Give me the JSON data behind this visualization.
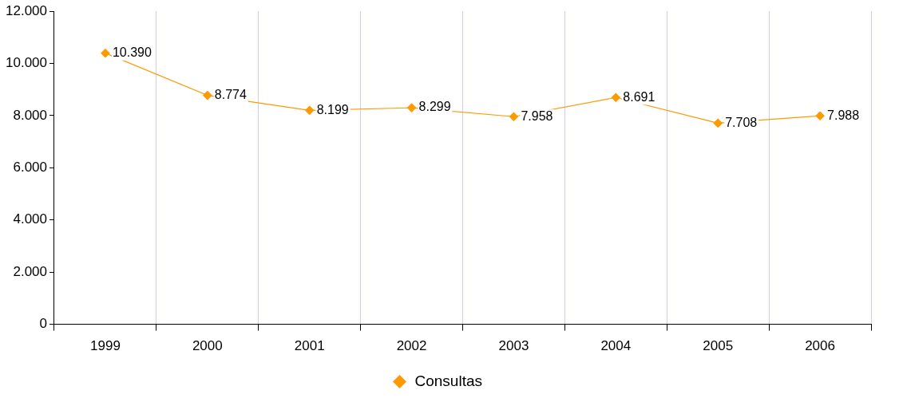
{
  "chart_data": {
    "type": "line",
    "categories": [
      "1999",
      "2000",
      "2001",
      "2002",
      "2003",
      "2004",
      "2005",
      "2006"
    ],
    "series": [
      {
        "name": "Consultas",
        "color": "#ff9900",
        "values": [
          10390,
          8774,
          8199,
          8299,
          7958,
          8691,
          7708,
          7988
        ],
        "value_labels": [
          "10.390",
          "8.774",
          "8.199",
          "8.299",
          "7.958",
          "8.691",
          "7.708",
          "7.988"
        ]
      }
    ],
    "ylim": [
      0,
      12000
    ],
    "yticks": [
      {
        "value": 0,
        "label": "0"
      },
      {
        "value": 2000,
        "label": "2.000"
      },
      {
        "value": 4000,
        "label": "4.000"
      },
      {
        "value": 6000,
        "label": "6.000"
      },
      {
        "value": 8000,
        "label": "8.000"
      },
      {
        "value": 10000,
        "label": "10.000"
      },
      {
        "value": 12000,
        "label": "12.000"
      }
    ],
    "grid": "x",
    "legend": "bottom",
    "marker": "diamond",
    "line_style": "solid"
  }
}
